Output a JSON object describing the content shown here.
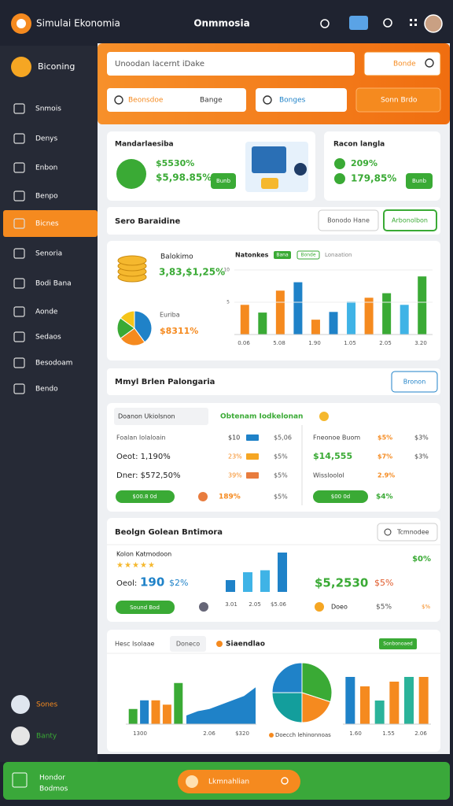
{
  "topbar": {
    "app_name": "Simulai Ekonomia",
    "title": "Onmmosia"
  },
  "sidebar": {
    "brand": "Biconing",
    "items": [
      "Snmois",
      "Denys",
      "Enbon",
      "Benpo",
      "Bicnes",
      "Senoria",
      "Bodi Bana",
      "Aonde",
      "Sedaos",
      "Besodoam",
      "Bendo"
    ],
    "active_index": 4,
    "footer": [
      "Sones",
      "Banty"
    ]
  },
  "header": {
    "search_placeholder": "Unoodan lacernt iDake",
    "search_button": "Bonde",
    "filter_from": "Beonsdoe",
    "filter_to": "Bange",
    "select": "Bonges",
    "action": "Sonn Brdo"
  },
  "cards": [
    {
      "title": "Mandarlaesiba",
      "change": "$5530%",
      "value": "$5,98.85%",
      "button": "Bunb"
    },
    {
      "title": "Racon langla",
      "change": "209%",
      "value": "179,85%",
      "button": "Bunb"
    }
  ],
  "section1": {
    "title": "Sero Baraidine",
    "buttons": [
      "Bonodo Hane",
      "Arbonolbon"
    ]
  },
  "overview": {
    "label1": "Balokimo",
    "value1": "3,83,$1,25%",
    "label2": "Euriba",
    "value2": "$8311%",
    "pie": [
      40,
      25,
      20,
      15
    ],
    "pie_colors": [
      "#1f82c8",
      "#f58a1f",
      "#3aaa35",
      "#f5c518"
    ],
    "chart": {
      "title": "Natonkes",
      "tags": [
        "Bana",
        "Bonde"
      ],
      "caption": "Lonaation",
      "ylim": [
        0,
        10
      ],
      "yticks": [
        5,
        10
      ],
      "axis_labels": [
        "0.06",
        "5.08",
        "1.90",
        "1.05",
        "2.05",
        "3.20"
      ],
      "values": [
        4.6,
        3.4,
        6.8,
        8.1,
        2.3,
        3.5,
        5.1,
        5.7,
        6.4,
        4.6,
        9.0
      ],
      "colors": [
        "#f58a1f",
        "#3aaa35",
        "#f58a1f",
        "#1f82c8",
        "#f58a1f",
        "#1f82c8",
        "#3fb3e6",
        "#f58a1f",
        "#3aaa35",
        "#3fb3e6",
        "#3aaa35"
      ]
    }
  },
  "section2": {
    "title": "Mmyl Brlen Palongaria",
    "button": "Bronon"
  },
  "table": {
    "dropdown": "Doanon Ukiolsnon",
    "heading": "Obtenam Iodkelonan",
    "left_rows": [
      [
        "Foalan Iolaloain",
        "$10",
        "$5,06"
      ],
      [
        "Oeot: 1,190%",
        "23%",
        "$5%"
      ],
      [
        "Dner: $572,50%",
        "39%",
        "$5%"
      ]
    ],
    "left_footer": [
      "$00.8 0d",
      "189%",
      "$5%"
    ],
    "right_rows": [
      [
        "Fneonoe Buom",
        "$5%",
        "$3%"
      ],
      [
        "$14,555",
        "$7%",
        "$3%"
      ],
      [
        "Wissloolol",
        "2.9%"
      ]
    ],
    "right_footer": [
      "$00 0d",
      "$4%"
    ]
  },
  "section3": {
    "title": "Beolgn Golean Bntimora",
    "button": "Tcmnodee",
    "label": "Kolon Katmodoon",
    "stat_label": "Oeol:",
    "stat_value": "190",
    "stat_change": "$2%",
    "button2": "Sound Bod",
    "chart": {
      "ylim": [
        0,
        10
      ],
      "values": [
        3,
        5,
        5.5,
        10
      ],
      "axis_labels": [
        "3.01",
        "2.05",
        "$5.06"
      ]
    },
    "right": [
      "$0%",
      "$5,2530",
      "$5%",
      "Doeo",
      "$5%",
      "$%"
    ]
  },
  "section4": {
    "tabs": [
      "Hesc Isolaae",
      "Doneco"
    ],
    "title": "Siaendlao",
    "tag": "Sonbonoaed",
    "bars": {
      "ylim": [
        0,
        10
      ],
      "values": [
        3.5,
        5.5,
        5.5,
        4.5,
        9.5
      ],
      "colors": [
        "#3aaa35",
        "#1f82c8",
        "#f58a1f",
        "#f58a1f",
        "#3aaa35"
      ]
    },
    "area": {
      "ylim": [
        0,
        10
      ],
      "values": [
        2,
        3,
        3.5,
        4.5,
        5.5,
        6.5,
        8.5
      ]
    },
    "pie": {
      "values": [
        30,
        20,
        25,
        25
      ],
      "colors": [
        "#3aaa35",
        "#f58a1f",
        "#139e9c",
        "#1f82c8"
      ],
      "legend": "Doecch lehinonnoas"
    },
    "bars2": {
      "ylim": [
        0,
        10
      ],
      "values": [
        10,
        8,
        5,
        9,
        10,
        10
      ],
      "colors": [
        "#1f82c8",
        "#f58a1f",
        "#2bb39a",
        "#f58a1f",
        "#2bb39a",
        "#f58a1f"
      ]
    },
    "axis_labels": [
      "1300",
      "2.06",
      "$320",
      "1.60",
      "1.55",
      "2.06"
    ]
  },
  "bottombar": {
    "title": "Hondor",
    "subtitle": "Bodmos",
    "search": "Lkmnahlian"
  }
}
